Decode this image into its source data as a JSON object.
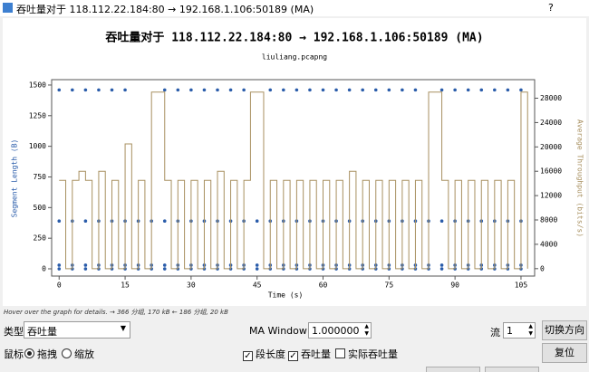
{
  "window_title": "吞吐量对于 118.112.22.184:80 → 192.168.1.106:50189 (MA)",
  "help": "?",
  "chart_data": {
    "type": "scatter",
    "title": "吞吐量对于 118.112.22.184:80 → 192.168.1.106:50189 (MA)",
    "subtitle": "liuliang.pcapng",
    "xlabel": "Time (s)",
    "ylabel": "Segment Length (B)",
    "y2label": "Average Throughput (bits/s)",
    "xlim": [
      -1.7,
      108.1
    ],
    "xticks": [
      0,
      15,
      30,
      45,
      60,
      75,
      90,
      105
    ],
    "ylim": [
      -59,
      1544
    ],
    "yticks": [
      0,
      250,
      500,
      750,
      1000,
      1250,
      1500
    ],
    "y2lim": [
      -1217,
      31050
    ],
    "y2ticks": [
      0,
      4000,
      8000,
      12000,
      16000,
      20000,
      24000,
      28000
    ],
    "x": [
      0,
      3,
      6,
      9,
      12,
      15,
      18,
      21,
      24,
      27,
      30,
      33,
      36,
      39,
      42,
      45,
      48,
      51,
      54,
      57,
      60,
      63,
      66,
      69,
      72,
      75,
      78,
      81,
      84,
      87,
      90,
      93,
      96,
      99,
      102,
      105
    ],
    "series": [
      {
        "color": "#2a5caa",
        "values": [
          1460,
          1460,
          1460,
          1460,
          1460,
          1460,
          null,
          null,
          1460,
          1460,
          1460,
          1460,
          1460,
          1460,
          1460,
          null,
          1460,
          1460,
          1460,
          1460,
          1460,
          1460,
          1460,
          1460,
          1460,
          1460,
          1460,
          1460,
          null,
          1460,
          1460,
          1460,
          1460,
          1460,
          1460,
          1460
        ]
      },
      {
        "color": "#2a5caa",
        "values": [
          390,
          390,
          390,
          390,
          390,
          390,
          390,
          390,
          390,
          390,
          390,
          390,
          390,
          390,
          390,
          390,
          390,
          390,
          390,
          390,
          390,
          390,
          390,
          390,
          390,
          390,
          390,
          390,
          390,
          390,
          390,
          390,
          390,
          390,
          390,
          390
        ]
      },
      {
        "color": "#2a5caa",
        "values": [
          30,
          30,
          30,
          30,
          30,
          30,
          30,
          30,
          30,
          30,
          30,
          30,
          30,
          30,
          30,
          30,
          30,
          30,
          30,
          30,
          30,
          30,
          30,
          30,
          30,
          30,
          30,
          30,
          30,
          30,
          30,
          30,
          30,
          30,
          30,
          30
        ]
      },
      {
        "color": "#2a5caa",
        "values": [
          0,
          0,
          0,
          0,
          0,
          0,
          0,
          0,
          0,
          0,
          0,
          0,
          0,
          0,
          0,
          0,
          0,
          0,
          0,
          0,
          0,
          0,
          0,
          0,
          0,
          0,
          0,
          0,
          0,
          0,
          0,
          0,
          0,
          0,
          0,
          0
        ]
      },
      {
        "type": "step",
        "axis": "y2",
        "color": "#a89060",
        "x": [
          0,
          1.5,
          3,
          4.5,
          6,
          7.5,
          9,
          10.5,
          12,
          13.5,
          15,
          16.5,
          18,
          19.5,
          21,
          22.5,
          24,
          25.5,
          27,
          28.5,
          30,
          31.5,
          33,
          34.5,
          36,
          37.5,
          39,
          40.5,
          42,
          43.5,
          45,
          46.5,
          48,
          49.5,
          51,
          52.5,
          54,
          55.5,
          57,
          58.5,
          60,
          61.5,
          63,
          64.5,
          66,
          67.5,
          69,
          70.5,
          72,
          73.5,
          75,
          76.5,
          78,
          79.5,
          81,
          82.5,
          84,
          85.5,
          87,
          88.5,
          90,
          91.5,
          93,
          94.5,
          96,
          97.5,
          99,
          100.5,
          102,
          103.5,
          105,
          106.5
        ],
        "values": [
          14500,
          0,
          14500,
          16000,
          14500,
          0,
          16000,
          0,
          14500,
          0,
          20500,
          0,
          14500,
          0,
          29000,
          29000,
          14500,
          0,
          14500,
          0,
          14500,
          0,
          14500,
          0,
          16000,
          0,
          14500,
          0,
          14500,
          29000,
          29000,
          0,
          14500,
          0,
          14500,
          0,
          14500,
          0,
          14500,
          0,
          14500,
          0,
          14500,
          0,
          16000,
          0,
          14500,
          0,
          14500,
          0,
          14500,
          0,
          14500,
          0,
          14500,
          0,
          29000,
          29000,
          14500,
          0,
          14500,
          0,
          14500,
          0,
          14500,
          0,
          14500,
          0,
          14500,
          0,
          29000,
          0
        ]
      }
    ]
  },
  "hint": "Hover over the graph for details. → 366 分组, 170 kB ← 186 分组, 20 kB",
  "controls": {
    "type_label": "类型",
    "type_value": "吞吐量",
    "ma_label": "MA Window (s)",
    "ma_value": "1.000000",
    "stream_label": "流",
    "stream_value": "1",
    "switch": "切换方向",
    "mouse_label": "鼠标",
    "drag": "拖拽",
    "zoom": "缩放",
    "seg_len": "段长度",
    "throughput": "吞吐量",
    "goodput": "实际吞吐量",
    "reset": "复位"
  }
}
